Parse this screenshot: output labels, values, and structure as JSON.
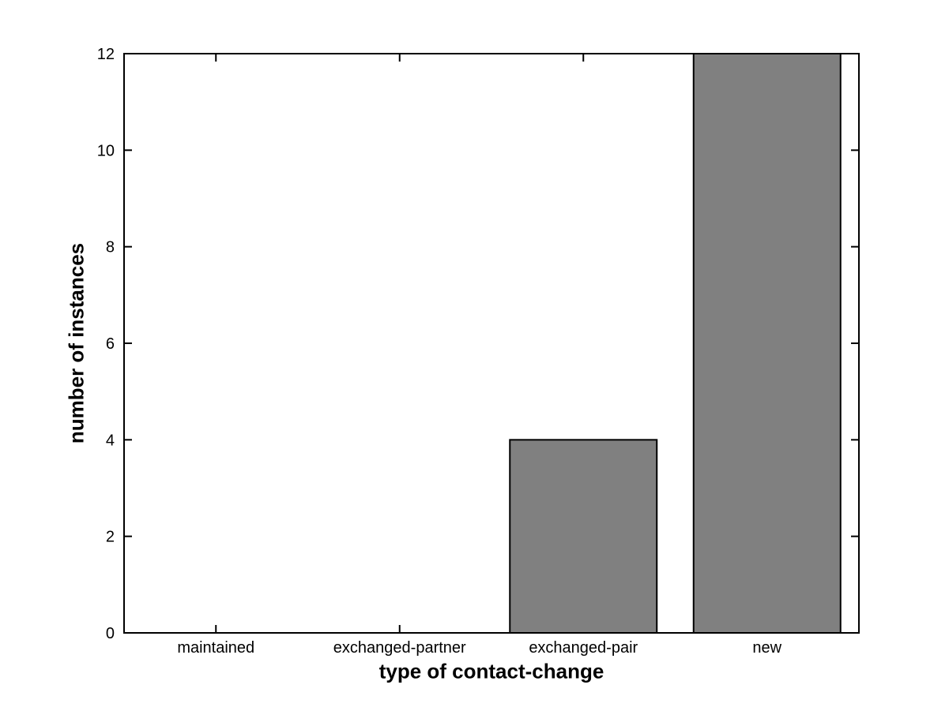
{
  "figure": {
    "background_color": "#ffffff"
  },
  "chart_data": {
    "type": "bar",
    "title": "",
    "xlabel": "type of contact-change",
    "ylabel": "number of instances",
    "categories": [
      "maintained",
      "exchanged-partner",
      "exchanged-pair",
      "new"
    ],
    "values": [
      0,
      0,
      4,
      12
    ],
    "ylim": [
      0,
      12
    ],
    "yticks": [
      0,
      2,
      4,
      6,
      8,
      10,
      12
    ],
    "bar_width_fraction": 0.8,
    "bar_color": "#808080",
    "bar_edge_color": "#000000",
    "axis_color": "#000000",
    "grid": false,
    "box": true,
    "tick_direction": "in",
    "legend": "none"
  }
}
